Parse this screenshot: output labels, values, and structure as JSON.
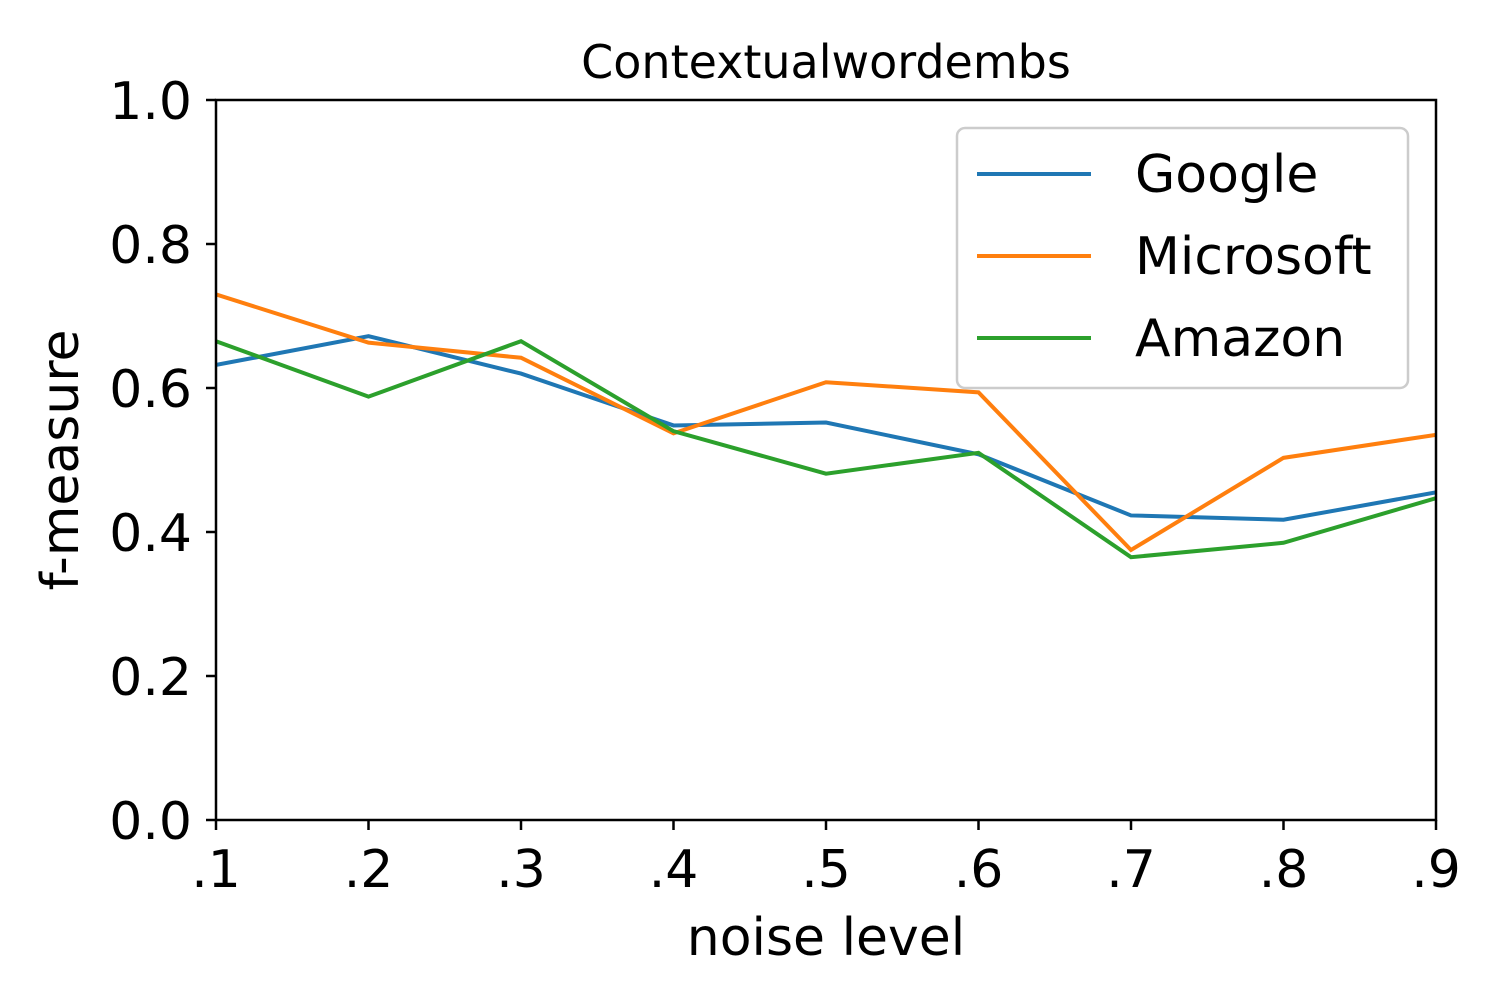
{
  "chart_data": {
    "type": "line",
    "title": "Contextualwordembs",
    "xlabel": "noise level",
    "ylabel": "f-measure",
    "categories": [
      ".1",
      ".2",
      ".3",
      ".4",
      ".5",
      ".6",
      ".7",
      ".8",
      ".9"
    ],
    "ylim": [
      0.0,
      1.0
    ],
    "yticks": [
      "0.0",
      "0.2",
      "0.4",
      "0.6",
      "0.8",
      "1.0"
    ],
    "ytick_values": [
      0.0,
      0.2,
      0.4,
      0.6,
      0.8,
      1.0
    ],
    "grid": false,
    "legend_position": "top-right",
    "series": [
      {
        "name": "Google",
        "color": "#1f77b4",
        "values": [
          0.632,
          0.672,
          0.62,
          0.548,
          0.552,
          0.508,
          0.423,
          0.417,
          0.455
        ]
      },
      {
        "name": "Microsoft",
        "color": "#ff7f0e",
        "values": [
          0.73,
          0.663,
          0.642,
          0.537,
          0.608,
          0.594,
          0.375,
          0.503,
          0.535
        ]
      },
      {
        "name": "Amazon",
        "color": "#2ca02c",
        "values": [
          0.665,
          0.588,
          0.665,
          0.54,
          0.481,
          0.51,
          0.365,
          0.385,
          0.447
        ]
      }
    ]
  }
}
